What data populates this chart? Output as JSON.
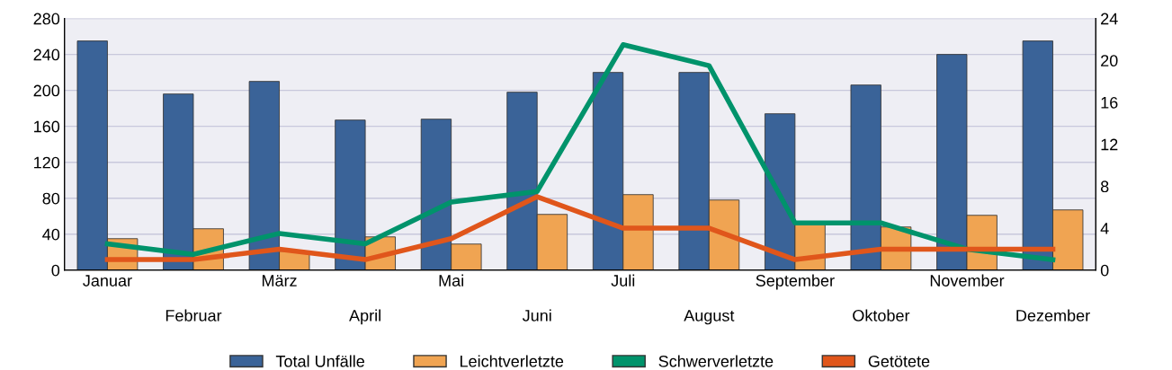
{
  "chart_data": {
    "type": "bar",
    "categories": [
      "Januar",
      "Februar",
      "März",
      "April",
      "Mai",
      "Juni",
      "Juli",
      "August",
      "September",
      "Oktober",
      "November",
      "Dezember"
    ],
    "series": [
      {
        "name": "Total Unfälle",
        "color": "#3a6398",
        "values": [
          255,
          196,
          210,
          167,
          168,
          198,
          220,
          220,
          174,
          206,
          240,
          255
        ]
      },
      {
        "name": "Leichtverletzte",
        "color": "#f0a452",
        "values": [
          35,
          46,
          21,
          37,
          29,
          62,
          84,
          78,
          52,
          48,
          61,
          67
        ]
      },
      {
        "name": "Schwerverletzte",
        "color": "#00936b",
        "type": "line",
        "axis": "y2",
        "values": [
          2.5,
          1.5,
          3.5,
          2.5,
          6.5,
          7.5,
          21.5,
          19.5,
          4.5,
          4.5,
          2,
          1
        ]
      },
      {
        "name": "Getötete",
        "color": "#e0561b",
        "type": "line",
        "axis": "y2",
        "values": [
          1,
          1,
          2,
          1,
          3,
          7,
          4,
          4,
          1,
          2,
          2,
          2
        ]
      }
    ],
    "ylim": [
      0,
      280
    ],
    "yticks": [
      0,
      40,
      80,
      120,
      160,
      200,
      240,
      280
    ],
    "y2lim": [
      0,
      24
    ],
    "y2ticks": [
      0,
      4,
      8,
      12,
      16,
      20,
      24
    ],
    "grid": "y",
    "legend": "bottom",
    "marker": "none"
  }
}
